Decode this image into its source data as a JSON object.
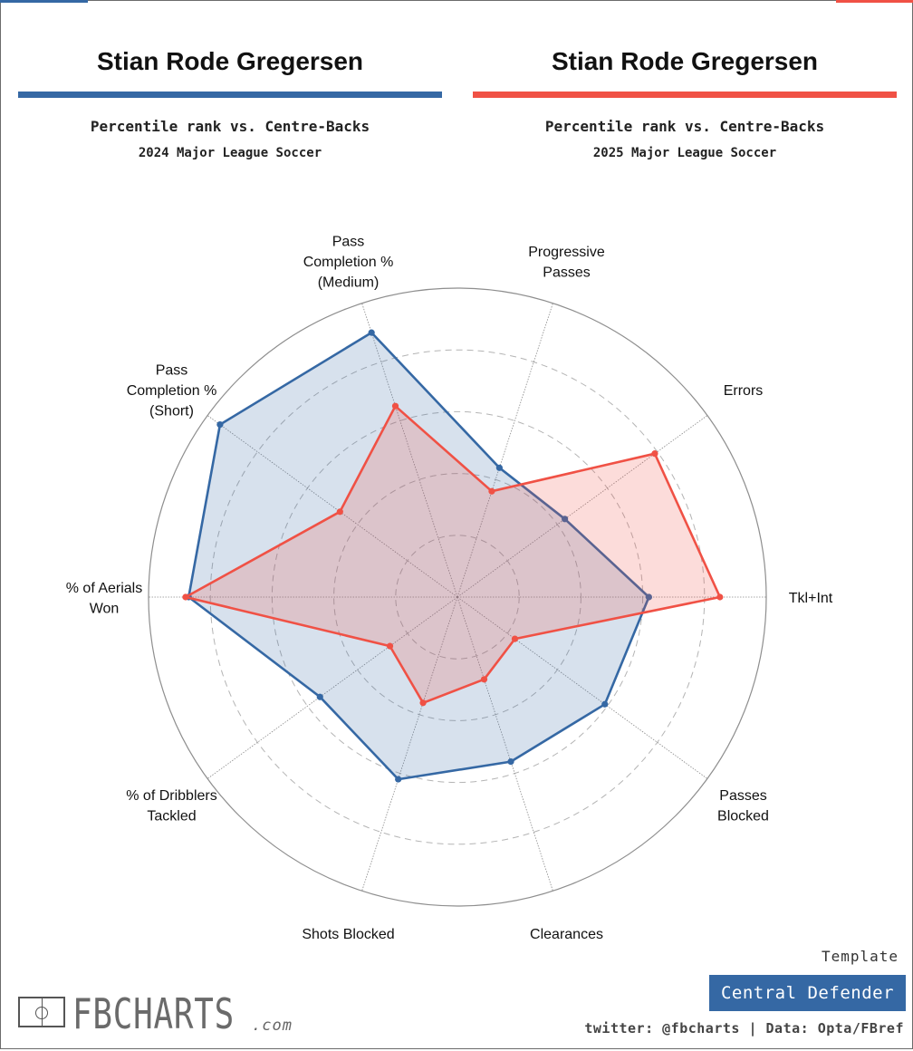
{
  "header": {
    "left": {
      "player": "Stian Rode Gregersen",
      "subtitle": "Percentile rank vs. Centre-Backs",
      "season": "2024 Major League Soccer",
      "color": "#3568a4"
    },
    "right": {
      "player": "Stian Rode Gregersen",
      "subtitle": "Percentile rank vs. Centre-Backs",
      "season": "2025 Major League Soccer",
      "color": "#f05145"
    }
  },
  "chart_data": {
    "type": "radar",
    "scale": [
      0,
      100
    ],
    "rings": [
      20,
      40,
      60,
      80,
      100
    ],
    "axes": [
      {
        "label": [
          "Tkl+Int"
        ]
      },
      {
        "label": [
          "Errors"
        ]
      },
      {
        "label": [
          "Progressive",
          "Passes"
        ]
      },
      {
        "label": [
          "Pass",
          "Completion %",
          "(Medium)"
        ]
      },
      {
        "label": [
          "Pass",
          "Completion %",
          "(Short)"
        ]
      },
      {
        "label": [
          "% of Aerials",
          "Won"
        ]
      },
      {
        "label": [
          "% of Dribblers",
          "Tackled"
        ]
      },
      {
        "label": [
          "Shots Blocked"
        ]
      },
      {
        "label": [
          "Clearances"
        ]
      },
      {
        "label": [
          "Passes",
          "Blocked"
        ]
      }
    ],
    "series": [
      {
        "name": "2024 Major League Soccer",
        "color": "#3568a4",
        "values": [
          62,
          43,
          44,
          90,
          95,
          87,
          55,
          62,
          56,
          59
        ]
      },
      {
        "name": "2025 Major League Soccer",
        "color": "#f05145",
        "values": [
          85,
          79,
          36,
          65,
          47,
          88,
          27,
          36,
          28,
          23
        ]
      }
    ]
  },
  "footer": {
    "template_label": "Template",
    "template_value": "Central Defender",
    "credit": "twitter: @fbcharts | Data: Opta/FBref",
    "logo_text": "FBCHARTS",
    "logo_suffix": ".com"
  }
}
